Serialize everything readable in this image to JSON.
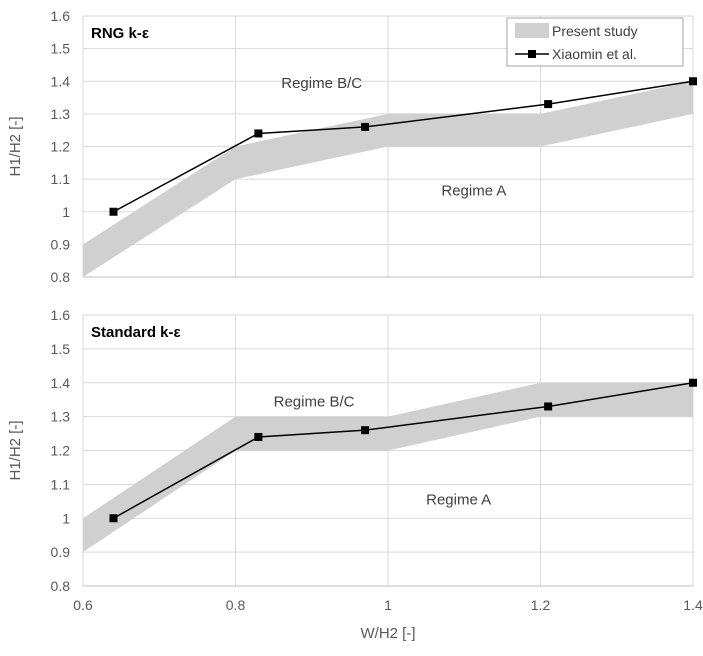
{
  "x_axis": {
    "label": "W/H2 [-]",
    "min": 0.6,
    "max": 1.4,
    "ticks": [
      0.6,
      0.8,
      1.0,
      1.2,
      1.4
    ],
    "tick_labels": [
      "0.6",
      "0.8",
      "1",
      "1.2",
      "1.4"
    ]
  },
  "legend": {
    "placement": "top-right of top panel",
    "entries": [
      {
        "label": "Present study",
        "swatch": "band"
      },
      {
        "label": "Xiaomin et al.",
        "swatch": "line-marker"
      }
    ]
  },
  "colors": {
    "band": "#d0d0d0",
    "line": "#000000",
    "grid": "#d9d9d9",
    "axis_text": "#595959",
    "annotation_text": "#404040"
  },
  "chart_data": [
    {
      "type": "area",
      "title": "RNG k-ε",
      "xlabel": "",
      "ylabel": "H1/H2 [-]",
      "xlim": [
        0.6,
        1.4
      ],
      "ylim": [
        0.8,
        1.6
      ],
      "yticks": [
        0.8,
        0.9,
        1.0,
        1.1,
        1.2,
        1.3,
        1.4,
        1.5,
        1.6
      ],
      "ytick_labels": [
        "0.8",
        "0.9",
        "1",
        "1.1",
        "1.2",
        "1.3",
        "1.4",
        "1.5",
        "1.6"
      ],
      "grid": true,
      "series": [
        {
          "name": "Present study",
          "kind": "band",
          "x": [
            0.6,
            0.8,
            1.0,
            1.2,
            1.4
          ],
          "lower": [
            0.8,
            1.1,
            1.2,
            1.2,
            1.3
          ],
          "upper": [
            0.9,
            1.2,
            1.3,
            1.3,
            1.4
          ]
        },
        {
          "name": "Xiaomin et al.",
          "kind": "line",
          "x": [
            0.64,
            0.83,
            0.97,
            1.21,
            1.4
          ],
          "y": [
            1.0,
            1.24,
            1.26,
            1.33,
            1.4
          ]
        }
      ],
      "annotations": [
        {
          "text": "Regime B/C",
          "x": 0.86,
          "y": 1.38
        },
        {
          "text": "Regime A",
          "x": 1.07,
          "y": 1.05
        }
      ]
    },
    {
      "type": "area",
      "title": "Standard k-ε",
      "xlabel": "W/H2 [-]",
      "ylabel": "H1/H2 [-]",
      "xlim": [
        0.6,
        1.4
      ],
      "ylim": [
        0.8,
        1.6
      ],
      "yticks": [
        0.8,
        0.9,
        1.0,
        1.1,
        1.2,
        1.3,
        1.4,
        1.5,
        1.6
      ],
      "ytick_labels": [
        "0.8",
        "0.9",
        "1",
        "1.1",
        "1.2",
        "1.3",
        "1.4",
        "1.5",
        "1.6"
      ],
      "grid": true,
      "series": [
        {
          "name": "Present study",
          "kind": "band",
          "x": [
            0.6,
            0.8,
            1.0,
            1.2,
            1.4
          ],
          "lower": [
            0.9,
            1.2,
            1.2,
            1.3,
            1.3
          ],
          "upper": [
            1.0,
            1.3,
            1.3,
            1.4,
            1.4
          ]
        },
        {
          "name": "Xiaomin et al.",
          "kind": "line",
          "x": [
            0.64,
            0.83,
            0.97,
            1.21,
            1.4
          ],
          "y": [
            1.0,
            1.24,
            1.26,
            1.33,
            1.4
          ]
        }
      ],
      "annotations": [
        {
          "text": "Regime B/C",
          "x": 0.85,
          "y": 1.33
        },
        {
          "text": "Regime A",
          "x": 1.05,
          "y": 1.04
        }
      ]
    }
  ]
}
